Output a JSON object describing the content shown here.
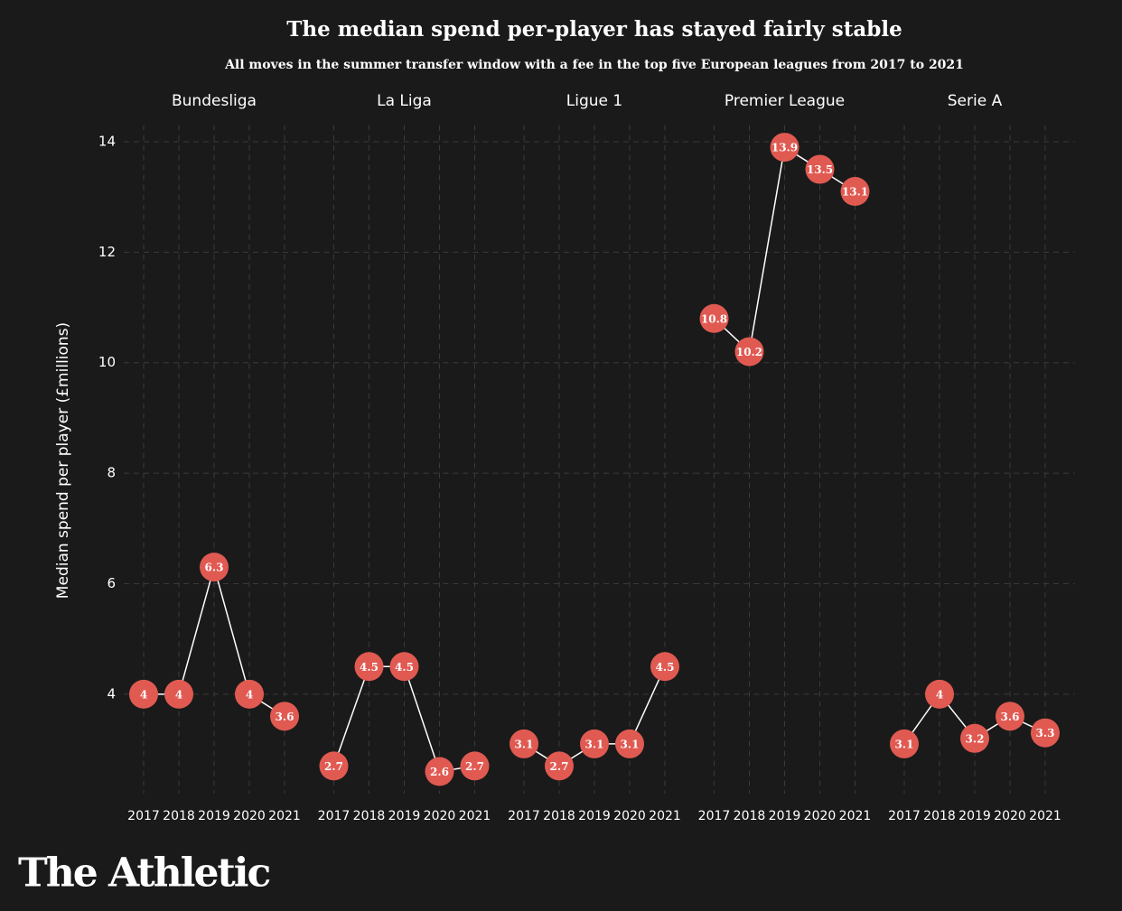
{
  "header": {
    "title": "The median spend per-player has stayed fairly stable",
    "subtitle": "All moves in the summer transfer window with a fee in the top five European leagues from 2017 to 2021",
    "y_label": "Median spend per player (£millions)"
  },
  "brand": "The Athletic",
  "chart_data": [
    {
      "type": "line",
      "title": "Bundesliga",
      "categories": [
        "2017",
        "2018",
        "2019",
        "2020",
        "2021"
      ],
      "values": [
        4,
        4,
        6.3,
        4,
        3.6
      ],
      "color": "#e05a52",
      "ylim": [
        2.2,
        14.3
      ],
      "yticks": [
        4,
        6,
        8,
        10,
        12,
        14
      ],
      "grid": true
    },
    {
      "type": "line",
      "title": "La Liga",
      "categories": [
        "2017",
        "2018",
        "2019",
        "2020",
        "2021"
      ],
      "values": [
        2.7,
        4.5,
        4.5,
        2.6,
        2.7
      ],
      "color": "#e05a52",
      "ylim": [
        2.2,
        14.3
      ],
      "yticks": [
        4,
        6,
        8,
        10,
        12,
        14
      ],
      "grid": true
    },
    {
      "type": "line",
      "title": "Ligue 1",
      "categories": [
        "2017",
        "2018",
        "2019",
        "2020",
        "2021"
      ],
      "values": [
        3.1,
        2.7,
        3.1,
        3.1,
        4.5
      ],
      "color": "#e05a52",
      "ylim": [
        2.2,
        14.3
      ],
      "yticks": [
        4,
        6,
        8,
        10,
        12,
        14
      ],
      "grid": true
    },
    {
      "type": "line",
      "title": "Premier League",
      "categories": [
        "2017",
        "2018",
        "2019",
        "2020",
        "2021"
      ],
      "values": [
        10.8,
        10.2,
        13.9,
        13.5,
        13.1
      ],
      "color": "#e05a52",
      "ylim": [
        2.2,
        14.3
      ],
      "yticks": [
        4,
        6,
        8,
        10,
        12,
        14
      ],
      "grid": true
    },
    {
      "type": "line",
      "title": "Serie A",
      "categories": [
        "2017",
        "2018",
        "2019",
        "2020",
        "2021"
      ],
      "values": [
        3.1,
        4,
        3.2,
        3.6,
        3.3
      ],
      "color": "#e05a52",
      "ylim": [
        2.2,
        14.3
      ],
      "yticks": [
        4,
        6,
        8,
        10,
        12,
        14
      ],
      "grid": true
    }
  ]
}
